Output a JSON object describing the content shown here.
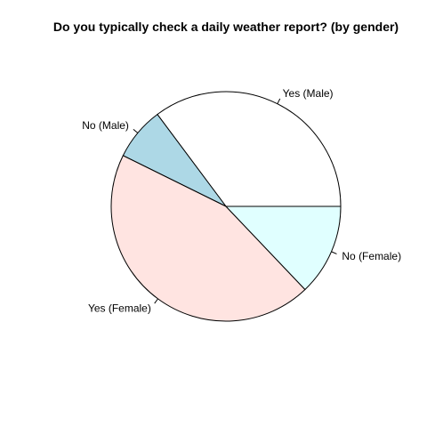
{
  "chart_data": {
    "type": "pie",
    "title": "Do you typically check a daily weather report? (by gender)",
    "slices": [
      {
        "label": "Yes (Male)",
        "value": 35.2,
        "color": "#ffffff"
      },
      {
        "label": "No (Male)",
        "value": 7.5,
        "color": "#add8e6"
      },
      {
        "label": "Yes (Female)",
        "value": 44.4,
        "color": "#ffe4e1"
      },
      {
        "label": "No (Female)",
        "value": 12.9,
        "color": "#e0ffff"
      }
    ],
    "start_angle": 0,
    "direction": "counterclockwise",
    "border_color": "#000000",
    "legend": "none"
  }
}
